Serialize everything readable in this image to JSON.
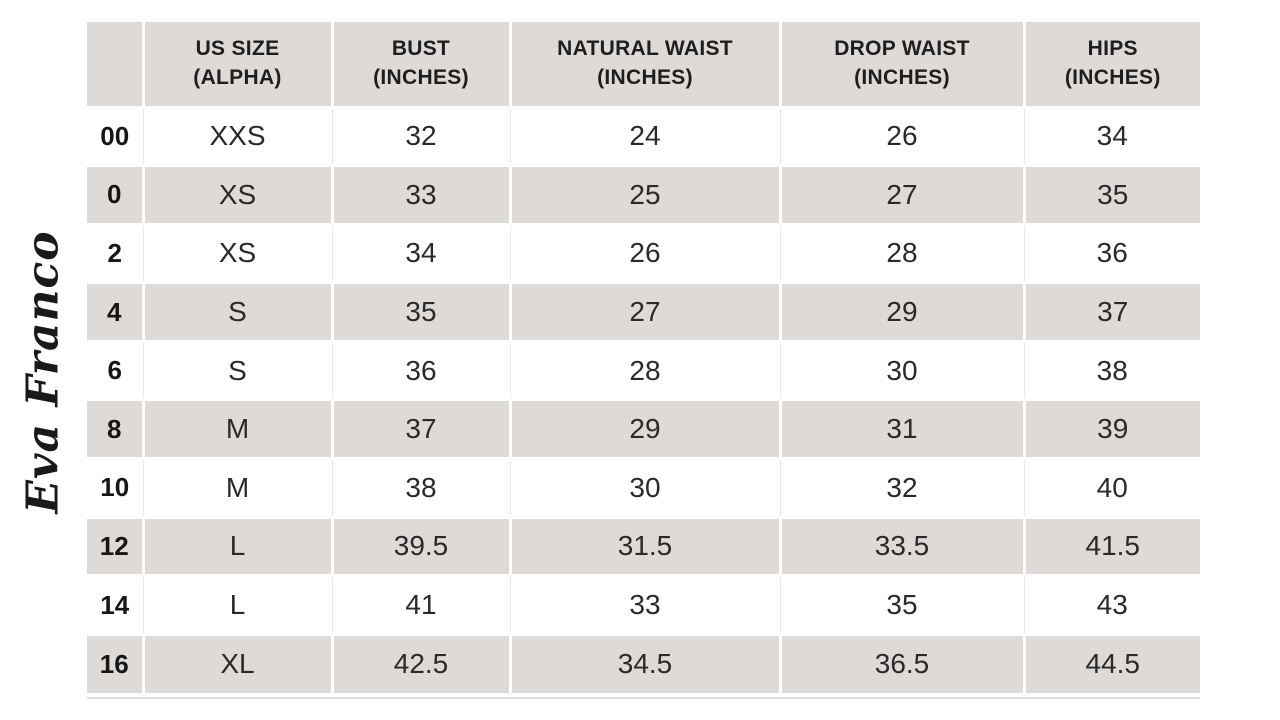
{
  "brand": {
    "logo_text": "Eva Franco"
  },
  "colors": {
    "stripe_bg": "#dedad8",
    "header_bg": "#dedad8",
    "text_dark": "#1e1e1e",
    "text_data": "#2a2a2a",
    "hairline": "#eae7e5"
  },
  "table": {
    "header_lines": [
      {
        "line1": "",
        "line2": ""
      },
      {
        "line1": "US SIZE",
        "line2": "(ALPHA)"
      },
      {
        "line1": "BUST",
        "line2": "(INCHES)"
      },
      {
        "line1": "NATURAL WAIST",
        "line2": "(INCHES)"
      },
      {
        "line1": "DROP WAIST",
        "line2": "(INCHES)"
      },
      {
        "line1": "HIPS",
        "line2": "(INCHES)"
      }
    ]
  },
  "chart_data": {
    "type": "table",
    "columns": [
      "",
      "US SIZE (ALPHA)",
      "BUST (INCHES)",
      "NATURAL WAIST (INCHES)",
      "DROP WAIST (INCHES)",
      "HIPS (INCHES)"
    ],
    "rows": [
      [
        "00",
        "XXS",
        "32",
        "24",
        "26",
        "34"
      ],
      [
        "0",
        "XS",
        "33",
        "25",
        "27",
        "35"
      ],
      [
        "2",
        "XS",
        "34",
        "26",
        "28",
        "36"
      ],
      [
        "4",
        "S",
        "35",
        "27",
        "29",
        "37"
      ],
      [
        "6",
        "S",
        "36",
        "28",
        "30",
        "38"
      ],
      [
        "8",
        "M",
        "37",
        "29",
        "31",
        "39"
      ],
      [
        "10",
        "M",
        "38",
        "30",
        "32",
        "40"
      ],
      [
        "12",
        "L",
        "39.5",
        "31.5",
        "33.5",
        "41.5"
      ],
      [
        "14",
        "L",
        "41",
        "33",
        "35",
        "43"
      ],
      [
        "16",
        "XL",
        "42.5",
        "34.5",
        "36.5",
        "44.5"
      ]
    ]
  }
}
